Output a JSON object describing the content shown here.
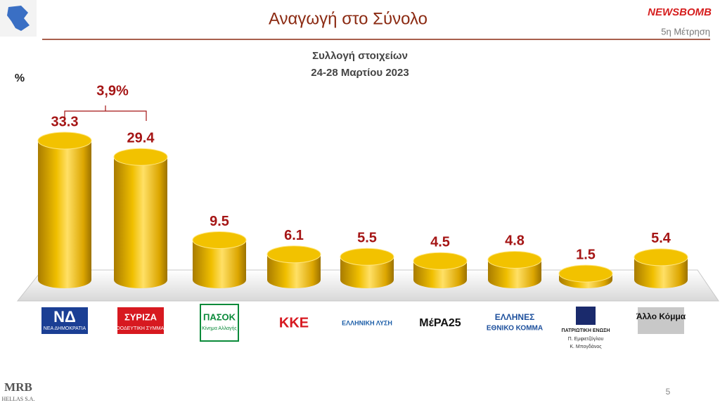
{
  "header": {
    "title": "Αναγωγή στο Σύνολο",
    "brand": "NEWSBOMB",
    "wave": "5η Μέτρηση"
  },
  "chart_data": {
    "type": "bar",
    "title": "Συλλογή στοιχείων",
    "subtitle": "24-28 Μαρτίου 2023",
    "y_label": "%",
    "categories": [
      "ΝΔ",
      "ΣΥΡΙΖΑ",
      "ΠΑΣΟΚ",
      "ΚΚΕ",
      "ΕΛΛΗΝΙΚΗ ΛΥΣΗ",
      "ΜέΡΑ25",
      "ΕΛΛΗΝΕΣ",
      "ΠΑΤΡΙΩΤΙΚΗ ΕΝΩΣΗ",
      "Άλλο Κόμμα"
    ],
    "category_sublabels": [
      [
        "ΝΕΑ ΔΗΜΟΚΡΑΤΙΑ"
      ],
      [
        "ΠΡΟΟΔΕΥΤΙΚΗ ΣΥΜΜΑΧΙΑ"
      ],
      [
        "Κίνημα Αλλαγής"
      ],
      [],
      [],
      [],
      [
        "ΕΘΝΙΚΟ ΚΟΜΜΑ"
      ],
      [
        "Π. Εμφιετζόγλου",
        "Κ. Μπογδάνος"
      ],
      []
    ],
    "category_colors": [
      "#1b3f94",
      "#d71920",
      "#0a8a3a",
      "#d71920",
      "#1c5ea8",
      "#111111",
      "#1c4f9c",
      "#222222",
      "#c8c8c8"
    ],
    "values": [
      33.3,
      29.4,
      9.5,
      6.1,
      5.5,
      4.5,
      4.8,
      1.5,
      5.4
    ],
    "color": "#f2c200",
    "label_color": "#a51515",
    "annotation": "3,9%"
  },
  "footer": {
    "logo": "MRB",
    "logo_sub": "HELLAS S.A.",
    "page": "5"
  }
}
